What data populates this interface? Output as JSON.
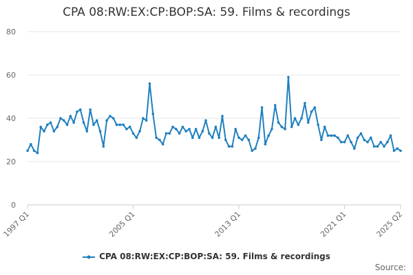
{
  "title": "CPA 08:RW:EX:CP:BOP:SA: 59. Films & recordings",
  "source_label": "Source:",
  "colors": {
    "series": "#1f7fbf",
    "grid": "#e6e6e6",
    "axis": "#cccccc"
  },
  "chart_data": {
    "type": "line",
    "title": "CPA 08:RW:EX:CP:BOP:SA: 59. Films & recordings",
    "xlabel": "",
    "ylabel": "",
    "ylim": [
      0,
      80
    ],
    "yticks": [
      0,
      20,
      40,
      60,
      80
    ],
    "x_start": "1997 Q1",
    "x_end": "2025 Q2",
    "x_tick_labels": [
      "1997 Q1",
      "2005 Q1",
      "2013 Q1",
      "2021 Q1",
      "2025 Q2"
    ],
    "grid": true,
    "legend_position": "bottom",
    "series": [
      {
        "name": "CPA 08:RW:EX:CP:BOP:SA: 59. Films & recordings",
        "values": [
          25,
          28,
          25,
          24,
          36,
          34,
          37,
          38,
          34,
          36,
          40,
          39,
          37,
          41,
          38,
          43,
          44,
          38,
          34,
          44,
          37,
          39,
          34,
          27,
          39,
          41,
          40,
          37,
          37,
          37,
          35,
          36,
          33,
          31,
          34,
          40,
          39,
          56,
          42,
          31,
          30,
          28,
          33,
          33,
          36,
          35,
          33,
          36,
          34,
          35,
          31,
          35,
          31,
          34,
          39,
          33,
          31,
          36,
          31,
          41,
          30,
          27,
          27,
          35,
          31,
          30,
          32,
          30,
          25,
          26,
          31,
          45,
          28,
          32,
          35,
          46,
          38,
          36,
          35,
          59,
          36,
          40,
          37,
          40,
          47,
          38,
          43,
          45,
          37,
          30,
          36,
          32,
          32,
          32,
          31,
          29,
          29,
          32,
          29,
          26,
          31,
          33,
          30,
          29,
          31,
          27,
          27,
          29,
          27,
          29,
          32,
          25,
          26,
          25
        ]
      }
    ]
  }
}
